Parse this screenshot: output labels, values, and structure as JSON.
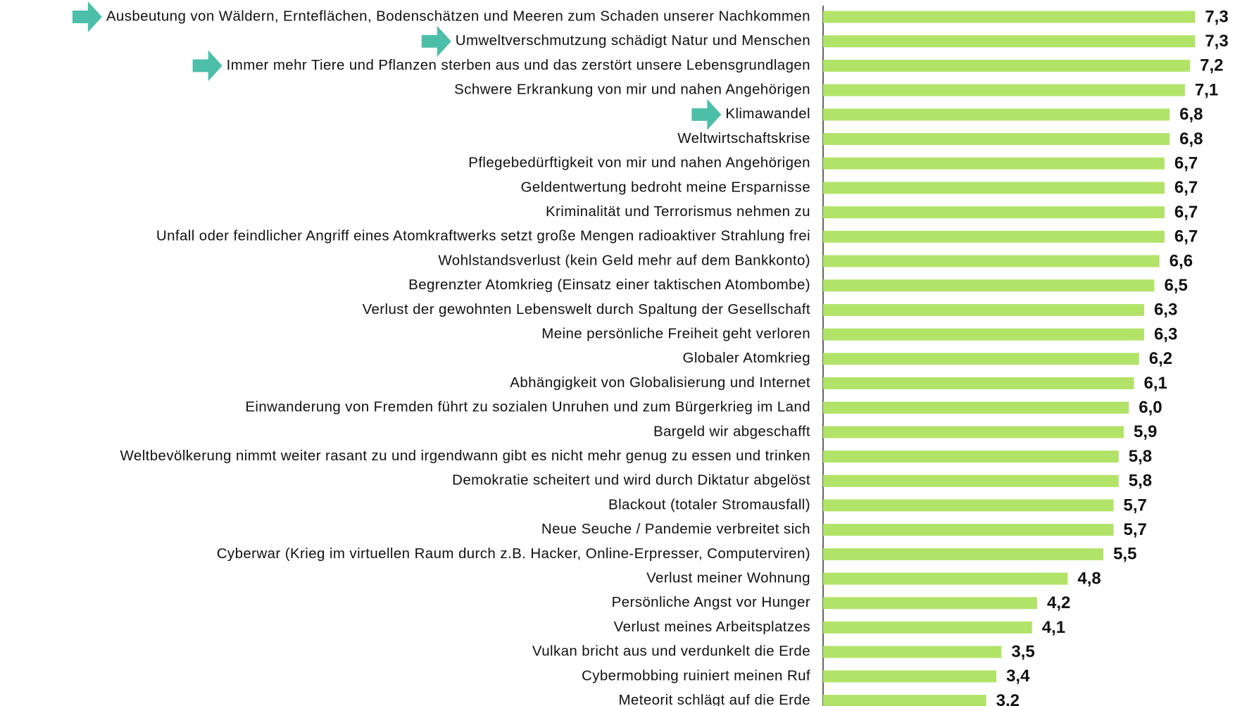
{
  "chart_data": {
    "type": "bar",
    "orientation": "horizontal",
    "color": "#b2e369",
    "categories": [
      "Ausbeutung von Wäldern, Ernteflächen, Bodenschätzen und Meeren zum Schaden unserer Nachkommen",
      "Umweltverschmutzung schädigt Natur und Menschen",
      "Immer mehr Tiere und Pflanzen sterben aus und das zerstört unsere Lebensgrundlagen",
      "Schwere Erkrankung von mir und nahen Angehörigen",
      "Klimawandel",
      "Weltwirtschaftskrise",
      "Pflegebedürftigkeit von mir und nahen Angehörigen",
      "Geldentwertung bedroht meine Ersparnisse",
      "Kriminalität und Terrorismus nehmen zu",
      "Unfall oder feindlicher Angriff eines Atomkraftwerks setzt große Mengen radioaktiver Strahlung frei",
      "Wohlstandsverlust (kein Geld mehr auf dem Bankkonto)",
      "Begrenzter Atomkrieg (Einsatz einer taktischen Atombombe)",
      "Verlust der gewohnten Lebenswelt durch Spaltung der Gesellschaft",
      "Meine persönliche Freiheit geht verloren",
      "Globaler Atomkrieg",
      "Abhängigkeit von Globalisierung und Internet",
      "Einwanderung von Fremden führt zu sozialen Unruhen und zum Bürgerkrieg im Land",
      "Bargeld wir abgeschafft",
      "Weltbevölkerung nimmt weiter rasant zu und irgendwann gibt es nicht mehr genug zu essen und trinken",
      "Demokratie scheitert und wird durch Diktatur abgelöst",
      "Blackout (totaler Stromausfall)",
      "Neue Seuche / Pandemie verbreitet sich",
      "Cyberwar (Krieg im virtuellen Raum durch z.B. Hacker, Online-Erpresser, Computerviren)",
      "Verlust meiner Wohnung",
      "Persönliche Angst vor Hunger",
      "Verlust meines Arbeitsplatzes",
      "Vulkan bricht aus und verdunkelt die Erde",
      "Cybermobbing ruiniert meinen Ruf",
      "Meteorit schlägt auf die Erde"
    ],
    "values": [
      7.3,
      7.3,
      7.2,
      7.1,
      6.8,
      6.8,
      6.7,
      6.7,
      6.7,
      6.7,
      6.6,
      6.5,
      6.3,
      6.3,
      6.2,
      6.1,
      6.0,
      5.9,
      5.8,
      5.8,
      5.7,
      5.7,
      5.5,
      4.8,
      4.2,
      4.1,
      3.5,
      3.4,
      3.2
    ],
    "value_labels": [
      "7,3",
      "7,3",
      "7,2",
      "7,1",
      "6,8",
      "6,8",
      "6,7",
      "6,7",
      "6,7",
      "6,7",
      "6,6",
      "6,5",
      "6,3",
      "6,3",
      "6,2",
      "6,1",
      "6,0",
      "5,9",
      "5,8",
      "5,8",
      "5,7",
      "5,7",
      "5,5",
      "4,8",
      "4,2",
      "4,1",
      "3,5",
      "3,4",
      "3,2"
    ],
    "xlim": [
      0,
      8
    ]
  }
}
